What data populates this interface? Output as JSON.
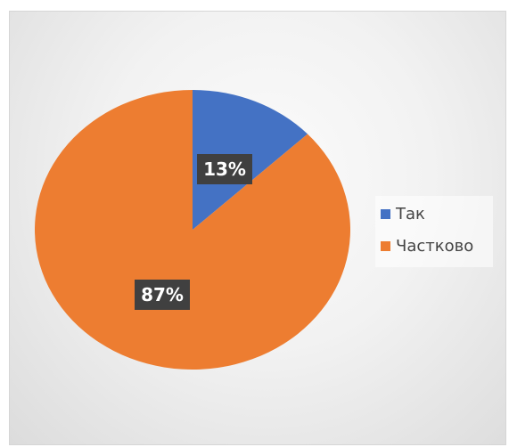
{
  "chart_data": {
    "type": "pie",
    "title": "",
    "slices": [
      {
        "label": "Так",
        "value": 13,
        "display": "13%",
        "color": "#4472C4"
      },
      {
        "label": "Частково",
        "value": 87,
        "display": "87%",
        "color": "#ED7D31"
      }
    ],
    "legend_position": "right",
    "data_label_style": "dark-box-white-text"
  }
}
